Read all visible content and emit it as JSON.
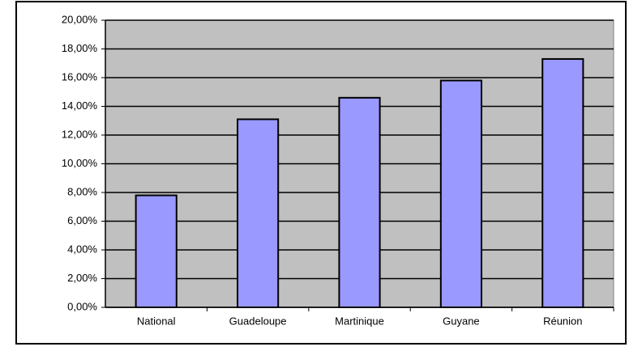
{
  "chart_data": {
    "type": "bar",
    "categories": [
      "National",
      "Guadeloupe",
      "Martinique",
      "Guyane",
      "Réunion"
    ],
    "values": [
      7.8,
      13.1,
      14.6,
      15.8,
      17.3
    ],
    "color": "#9999ff",
    "plot_background": "#c0c0c0",
    "ylim": [
      0,
      20
    ],
    "yticks": [
      {
        "value": 0,
        "label": "0,00%"
      },
      {
        "value": 2,
        "label": "2,00%"
      },
      {
        "value": 4,
        "label": "4,00%"
      },
      {
        "value": 6,
        "label": "6,00%"
      },
      {
        "value": 8,
        "label": "8,00%"
      },
      {
        "value": 10,
        "label": "10,00%"
      },
      {
        "value": 12,
        "label": "12,00%"
      },
      {
        "value": 14,
        "label": "14,00%"
      },
      {
        "value": 16,
        "label": "16,00%"
      },
      {
        "value": 18,
        "label": "18,00%"
      },
      {
        "value": 20,
        "label": "20,00%"
      }
    ],
    "grid": true
  }
}
